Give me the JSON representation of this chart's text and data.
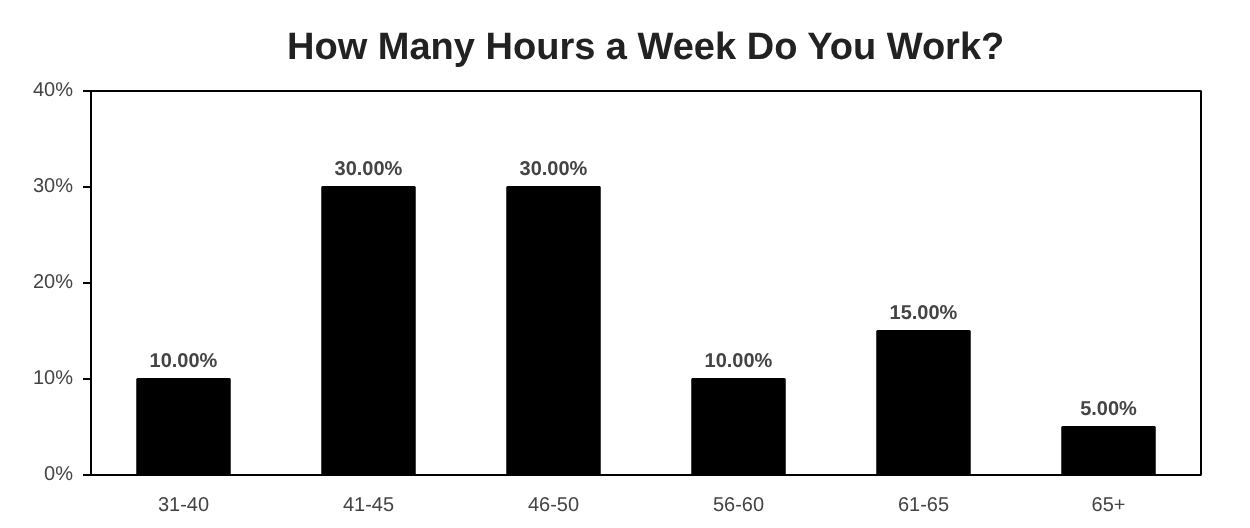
{
  "chart_data": {
    "type": "bar",
    "title": "How Many Hours a Week Do You Work?",
    "categories": [
      "31-40",
      "41-45",
      "46-50",
      "56-60",
      "61-65",
      "65+"
    ],
    "values": [
      10,
      30,
      30,
      10,
      15,
      5
    ],
    "value_labels": [
      "10.00%",
      "30.00%",
      "30.00%",
      "10.00%",
      "15.00%",
      "5.00%"
    ],
    "color": "#000000",
    "ylim": [
      0,
      40
    ],
    "yticks": [
      {
        "value": 0,
        "label": "0%"
      },
      {
        "value": 10,
        "label": "10%"
      },
      {
        "value": 20,
        "label": "20%"
      },
      {
        "value": 30,
        "label": "30%"
      },
      {
        "value": 40,
        "label": "40%"
      }
    ],
    "grid": false
  }
}
